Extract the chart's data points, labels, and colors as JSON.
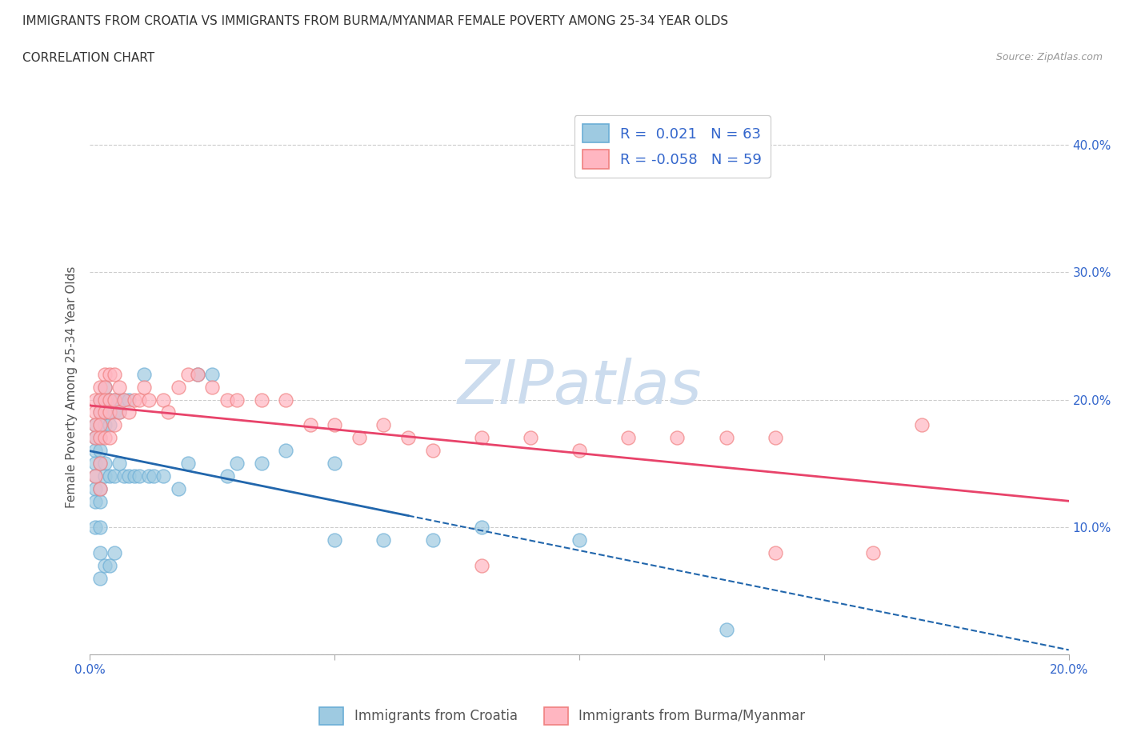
{
  "title": "IMMIGRANTS FROM CROATIA VS IMMIGRANTS FROM BURMA/MYANMAR FEMALE POVERTY AMONG 25-34 YEAR OLDS",
  "subtitle": "CORRELATION CHART",
  "source": "Source: ZipAtlas.com",
  "ylabel": "Female Poverty Among 25-34 Year Olds",
  "xlim": [
    0.0,
    0.2
  ],
  "ylim": [
    0.0,
    0.42
  ],
  "x_ticks": [
    0.0,
    0.05,
    0.1,
    0.15,
    0.2
  ],
  "x_tick_labels": [
    "0.0%",
    "",
    "",
    "",
    "20.0%"
  ],
  "y_ticks": [
    0.0,
    0.1,
    0.2,
    0.3,
    0.4
  ],
  "y_tick_labels": [
    "",
    "10.0%",
    "20.0%",
    "30.0%",
    "40.0%"
  ],
  "croatia_color": "#6baed6",
  "croatia_fill": "#9ecae1",
  "burma_color": "#f08080",
  "burma_fill": "#ffb6c1",
  "trend_croatia_color": "#2166ac",
  "trend_burma_color": "#e8436a",
  "watermark_color": "#ccdcee",
  "legend_R_croatia": "0.021",
  "legend_N_croatia": "63",
  "legend_R_burma": "-0.058",
  "legend_N_burma": "59",
  "legend_label_croatia": "Immigrants from Croatia",
  "legend_label_burma": "Immigrants from Burma/Myanmar",
  "croatia_x": [
    0.001,
    0.001,
    0.001,
    0.001,
    0.001,
    0.001,
    0.001,
    0.001,
    0.002,
    0.002,
    0.002,
    0.002,
    0.002,
    0.002,
    0.002,
    0.002,
    0.002,
    0.002,
    0.002,
    0.003,
    0.003,
    0.003,
    0.003,
    0.003,
    0.003,
    0.003,
    0.004,
    0.004,
    0.004,
    0.004,
    0.004,
    0.005,
    0.005,
    0.005,
    0.005,
    0.006,
    0.006,
    0.006,
    0.007,
    0.007,
    0.008,
    0.008,
    0.009,
    0.01,
    0.011,
    0.012,
    0.013,
    0.015,
    0.018,
    0.02,
    0.022,
    0.025,
    0.028,
    0.03,
    0.035,
    0.04,
    0.05,
    0.06,
    0.07,
    0.08,
    0.1,
    0.13,
    0.05
  ],
  "croatia_y": [
    0.18,
    0.17,
    0.16,
    0.15,
    0.14,
    0.13,
    0.12,
    0.1,
    0.2,
    0.19,
    0.18,
    0.17,
    0.16,
    0.15,
    0.13,
    0.12,
    0.1,
    0.08,
    0.06,
    0.21,
    0.2,
    0.19,
    0.18,
    0.15,
    0.14,
    0.07,
    0.2,
    0.19,
    0.18,
    0.14,
    0.07,
    0.2,
    0.19,
    0.14,
    0.08,
    0.2,
    0.19,
    0.15,
    0.2,
    0.14,
    0.2,
    0.14,
    0.14,
    0.14,
    0.22,
    0.14,
    0.14,
    0.14,
    0.13,
    0.15,
    0.22,
    0.22,
    0.14,
    0.15,
    0.15,
    0.16,
    0.15,
    0.09,
    0.09,
    0.1,
    0.09,
    0.02,
    0.09
  ],
  "burma_x": [
    0.001,
    0.001,
    0.001,
    0.001,
    0.001,
    0.002,
    0.002,
    0.002,
    0.002,
    0.002,
    0.002,
    0.002,
    0.003,
    0.003,
    0.003,
    0.003,
    0.003,
    0.004,
    0.004,
    0.004,
    0.004,
    0.005,
    0.005,
    0.005,
    0.006,
    0.006,
    0.007,
    0.008,
    0.009,
    0.01,
    0.011,
    0.012,
    0.015,
    0.016,
    0.018,
    0.02,
    0.022,
    0.025,
    0.028,
    0.03,
    0.035,
    0.04,
    0.045,
    0.05,
    0.055,
    0.06,
    0.065,
    0.07,
    0.08,
    0.09,
    0.1,
    0.11,
    0.12,
    0.13,
    0.14,
    0.16,
    0.17,
    0.14,
    0.08
  ],
  "burma_y": [
    0.2,
    0.19,
    0.18,
    0.17,
    0.14,
    0.21,
    0.2,
    0.19,
    0.18,
    0.17,
    0.15,
    0.13,
    0.22,
    0.21,
    0.2,
    0.19,
    0.17,
    0.22,
    0.2,
    0.19,
    0.17,
    0.22,
    0.2,
    0.18,
    0.21,
    0.19,
    0.2,
    0.19,
    0.2,
    0.2,
    0.21,
    0.2,
    0.2,
    0.19,
    0.21,
    0.22,
    0.22,
    0.21,
    0.2,
    0.2,
    0.2,
    0.2,
    0.18,
    0.18,
    0.17,
    0.18,
    0.17,
    0.16,
    0.17,
    0.17,
    0.16,
    0.17,
    0.17,
    0.17,
    0.17,
    0.08,
    0.18,
    0.08,
    0.07
  ]
}
